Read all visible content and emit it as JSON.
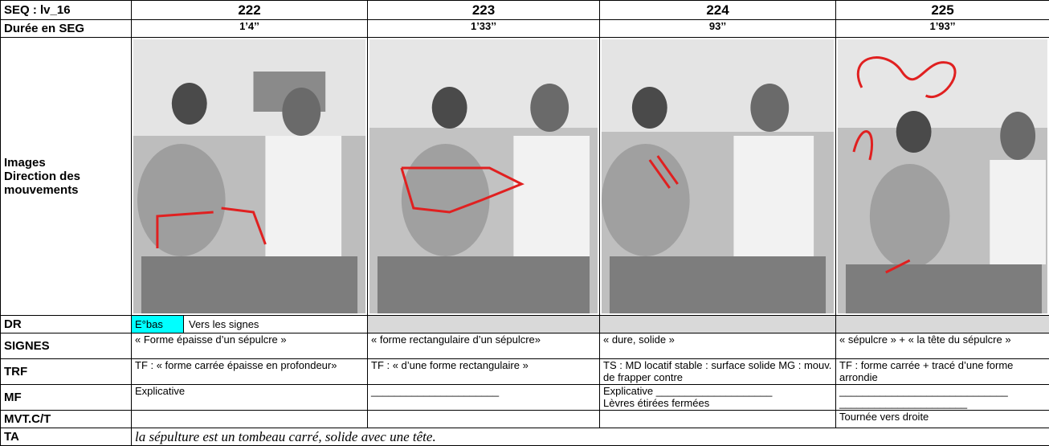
{
  "table": {
    "header": {
      "label": "SEQ : lv_16",
      "values": [
        "222",
        "223",
        "224",
        "225"
      ]
    },
    "duration": {
      "label": "Durée en SEG",
      "values": [
        "1’4’’",
        "1’33’’",
        "93’’",
        "1’93’’"
      ]
    },
    "images": {
      "label": [
        "Images",
        "Direction des",
        "mouvements"
      ]
    },
    "dr": {
      "label": "DR",
      "parts": [
        "E°bas",
        "Vers les signes"
      ]
    },
    "signes": {
      "label": "SIGNES",
      "values": [
        "« Forme épaisse d’un sépulcre  »",
        "« forme rectangulaire d’un sépulcre»",
        "« dure, solide »",
        "« sépulcre » + « la tête du sépulcre »"
      ]
    },
    "trf": {
      "label": "TRF",
      "values": [
        "TF : « forme carrée épaisse en profondeur»",
        "TF : « d’une forme rectangulaire »",
        "TS : MD locatif stable : surface solide MG : mouv. de frapper contre",
        "TF : forme carrée + tracé d’une forme arrondie"
      ]
    },
    "mf": {
      "label": "MF",
      "values": [
        [
          "Explicative"
        ],
        [
          "______________________"
        ],
        [
          "Explicative ____________________",
          "Lèvres étirées fermées"
        ],
        [
          "_____________________________",
          "______________________"
        ]
      ]
    },
    "mvt": {
      "label": "MVT.C/T",
      "last": "Tournée vers droite"
    },
    "ta": {
      "label": "TA",
      "text": "la sépulture est un tombeau carré, solide avec une tête."
    }
  }
}
